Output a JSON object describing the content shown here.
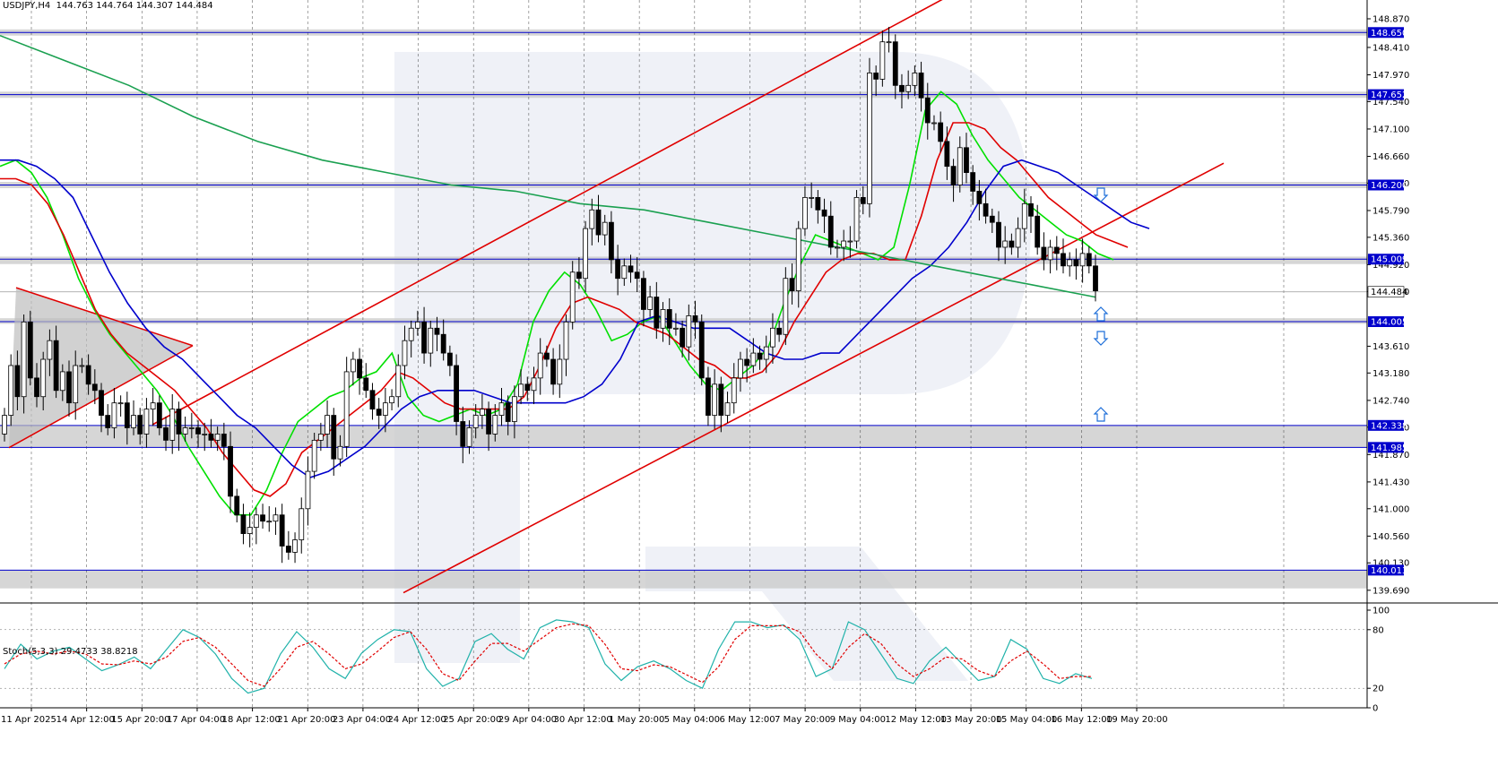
{
  "header": {
    "symbol": "USDJPY,H4",
    "ohlc": "144.763 144.764 144.307 144.484"
  },
  "stoch_header": {
    "label": "Stoch(5,3,3)",
    "values": "29.4733 38.8218"
  },
  "colors": {
    "background": "#ffffff",
    "watermark": "#e2e6f0",
    "candle": "#000000",
    "ma_fast": "#00e000",
    "ma_mid": "#e00000",
    "ma_slow": "#0000cc",
    "ma_long": "#1aa050",
    "channel": "#e00000",
    "level_line": "#0000cc",
    "zone": "#c8c8c8",
    "stoch_main": "#20b2aa",
    "stoch_signal": "#e00000",
    "arrow": "#1e6fd9"
  },
  "chart_data": [
    {
      "type": "candlestick",
      "name": "USDJPY,H4",
      "y_axis_ticks": [
        "148.870",
        "148.410",
        "147.970",
        "147.540",
        "147.100",
        "146.660",
        "146.230",
        "145.790",
        "145.360",
        "144.920",
        "144.490",
        "143.610",
        "143.180",
        "142.740",
        "142.310",
        "141.870",
        "141.430",
        "141.000",
        "140.560",
        "140.130",
        "139.690"
      ],
      "ylim": [
        139.5,
        149.1
      ],
      "x_axis_labels": [
        "11 Apr 2025",
        "14 Apr 12:00",
        "15 Apr 20:00",
        "17 Apr 04:00",
        "18 Apr 12:00",
        "21 Apr 20:00",
        "23 Apr 04:00",
        "24 Apr 12:00",
        "25 Apr 20:00",
        "29 Apr 04:00",
        "30 Apr 12:00",
        "1 May 20:00",
        "5 May 04:00",
        "6 May 12:00",
        "7 May 20:00",
        "9 May 04:00",
        "12 May 12:00",
        "13 May 20:00",
        "15 May 04:00",
        "16 May 12:00",
        "19 May 20:00"
      ],
      "current_price": "144.484",
      "levels": [
        {
          "label": "148.650",
          "value": 148.65
        },
        {
          "label": "147.652",
          "value": 147.652
        },
        {
          "label": "146.200",
          "value": 146.2
        },
        {
          "label": "145.009",
          "value": 145.009
        },
        {
          "label": "144.005",
          "value": 144.005
        },
        {
          "label": "142.338",
          "value": 142.338
        },
        {
          "label": "141.985",
          "value": 141.985
        },
        {
          "label": "140.013",
          "value": 140.013
        }
      ],
      "zones": [
        [
          148.6,
          148.7
        ],
        [
          147.6,
          147.7
        ],
        [
          146.15,
          146.25
        ],
        [
          144.93,
          145.05
        ],
        [
          143.97,
          144.06
        ],
        [
          141.985,
          142.338
        ],
        [
          139.72,
          140.013
        ]
      ],
      "candle_closes": [
        142.5,
        143.3,
        142.8,
        144.0,
        143.1,
        142.8,
        143.4,
        143.7,
        142.9,
        143.2,
        142.7,
        143.3,
        143.3,
        143.0,
        142.9,
        142.5,
        142.3,
        142.7,
        142.7,
        142.3,
        142.5,
        142.2,
        142.6,
        142.7,
        142.3,
        142.1,
        142.6,
        142.2,
        142.3,
        142.3,
        142.2,
        142.2,
        142.1,
        142.2,
        142.0,
        141.2,
        140.9,
        140.6,
        140.7,
        140.9,
        140.8,
        140.8,
        140.9,
        140.4,
        140.3,
        140.5,
        141.0,
        141.6,
        142.1,
        142.2,
        142.5,
        141.8,
        142.0,
        143.2,
        143.4,
        143.1,
        142.9,
        142.6,
        142.5,
        142.7,
        142.8,
        143.3,
        143.7,
        143.9,
        144.0,
        143.5,
        143.9,
        143.8,
        143.5,
        143.3,
        142.4,
        142.0,
        142.3,
        142.5,
        142.6,
        142.2,
        142.5,
        142.7,
        142.4,
        142.8,
        143.0,
        142.9,
        143.1,
        143.5,
        143.4,
        143.0,
        143.4,
        144.0,
        144.8,
        144.7,
        145.5,
        145.8,
        145.4,
        145.6,
        145.0,
        144.7,
        144.9,
        144.8,
        144.7,
        144.2,
        144.4,
        143.9,
        144.2,
        143.9,
        143.9,
        143.6,
        144.1,
        144.0,
        143.1,
        142.5,
        143.0,
        142.5,
        142.7,
        143.1,
        143.4,
        143.3,
        143.5,
        143.4,
        143.6,
        143.9,
        143.8,
        144.7,
        144.5,
        145.5,
        146.0,
        146.0,
        145.8,
        145.7,
        145.2,
        145.2,
        145.3,
        145.3,
        146.0,
        145.9,
        148.0,
        147.9,
        148.5,
        148.5,
        147.8,
        147.7,
        147.8,
        148.0,
        147.6,
        147.2,
        147.2,
        146.9,
        146.5,
        146.2,
        146.8,
        146.4,
        146.1,
        145.9,
        145.7,
        145.6,
        145.2,
        145.3,
        145.2,
        145.5,
        145.9,
        145.7,
        145.2,
        145.0,
        145.2,
        145.1,
        144.9,
        145.0,
        144.9,
        145.1,
        144.9,
        144.5
      ],
      "series": [
        {
          "name": "",
          "values": [
            146.5,
            146.6,
            146.4,
            146.0,
            145.4,
            144.7,
            144.2,
            143.8,
            143.5,
            143.2,
            142.9,
            142.5,
            142.0,
            141.6,
            141.2,
            140.9,
            140.9,
            141.3,
            141.9,
            142.4,
            142.6,
            142.8,
            142.9,
            143.1,
            143.2,
            143.5,
            142.8,
            142.5,
            142.4,
            142.5,
            142.6,
            142.5,
            142.6,
            143.0,
            144.0,
            144.5,
            144.8,
            144.6,
            144.2,
            143.7,
            143.8,
            144.0,
            144.1,
            143.7,
            143.3,
            143.0,
            142.9,
            143.1,
            143.3,
            143.6,
            144.3,
            144.9,
            145.4,
            145.3,
            145.2,
            145.1,
            145.0,
            145.2,
            146.2,
            147.4,
            147.7,
            147.5,
            147.0,
            146.6,
            146.3,
            146.0,
            145.8,
            145.6,
            145.4,
            145.3,
            145.1,
            145.0
          ]
        },
        {
          "name": "",
          "values": [
            146.3,
            146.3,
            146.2,
            145.9,
            145.4,
            144.8,
            144.2,
            143.8,
            143.5,
            143.3,
            143.1,
            142.9,
            142.6,
            142.3,
            141.9,
            141.6,
            141.3,
            141.2,
            141.4,
            141.9,
            142.1,
            142.3,
            142.5,
            142.7,
            142.9,
            143.2,
            143.1,
            142.9,
            142.7,
            142.6,
            142.6,
            142.6,
            142.6,
            142.8,
            143.3,
            143.9,
            144.3,
            144.4,
            144.3,
            144.2,
            144.0,
            143.9,
            143.8,
            143.6,
            143.4,
            143.3,
            143.1,
            143.1,
            143.2,
            143.5,
            144.0,
            144.4,
            144.8,
            145.0,
            145.1,
            145.1,
            145.0,
            145.0,
            145.7,
            146.6,
            147.2,
            147.2,
            147.1,
            146.8,
            146.6,
            146.3,
            146.0,
            145.8,
            145.6,
            145.4,
            145.3,
            145.2
          ]
        },
        {
          "name": "",
          "values": [
            146.6,
            146.6,
            146.5,
            146.3,
            146.0,
            145.4,
            144.8,
            144.3,
            143.9,
            143.6,
            143.4,
            143.1,
            142.8,
            142.5,
            142.3,
            142.0,
            141.7,
            141.5,
            141.6,
            141.8,
            142.0,
            142.3,
            142.6,
            142.8,
            142.9,
            142.9,
            142.9,
            142.8,
            142.7,
            142.7,
            142.7,
            142.7,
            142.8,
            143.0,
            143.4,
            144.0,
            144.1,
            144.0,
            143.9,
            143.9,
            143.9,
            143.7,
            143.5,
            143.4,
            143.4,
            143.5,
            143.5,
            143.8,
            144.1,
            144.4,
            144.7,
            144.9,
            145.2,
            145.6,
            146.1,
            146.5,
            146.6,
            146.5,
            146.4,
            146.2,
            146.0,
            145.8,
            145.6,
            145.5
          ]
        },
        {
          "name": "",
          "values": [
            148.6,
            148.2,
            147.8,
            147.3,
            146.9,
            146.6,
            146.4,
            146.2,
            146.1,
            145.9,
            145.8,
            145.6,
            145.4,
            145.2,
            145.0,
            144.8,
            144.6,
            144.4
          ]
        }
      ]
    },
    {
      "type": "line",
      "name": "Stoch(5,3,3)",
      "ylim": [
        0,
        100
      ],
      "y_axis_ticks": [
        "100",
        "80",
        "20",
        "0"
      ],
      "series": [
        {
          "name": "",
          "values": [
            40,
            65,
            50,
            58,
            62,
            50,
            38,
            44,
            52,
            40,
            60,
            80,
            72,
            55,
            30,
            15,
            20,
            55,
            78,
            62,
            40,
            30,
            56,
            70,
            80,
            78,
            40,
            22,
            30,
            68,
            76,
            60,
            50,
            82,
            90,
            88,
            82,
            45,
            28,
            42,
            48,
            40,
            28,
            20,
            60,
            88,
            88,
            82,
            85,
            70,
            32,
            40,
            88,
            80,
            55,
            30,
            25,
            48,
            62,
            45,
            28,
            32,
            70,
            60,
            30,
            25,
            35,
            30
          ]
        },
        {
          "name": "",
          "values": [
            45,
            55,
            58,
            55,
            58,
            55,
            45,
            44,
            48,
            45,
            52,
            68,
            72,
            62,
            45,
            28,
            22,
            40,
            62,
            68,
            55,
            40,
            45,
            58,
            72,
            78,
            60,
            35,
            28,
            48,
            66,
            66,
            58,
            70,
            82,
            86,
            84,
            65,
            40,
            38,
            44,
            42,
            34,
            26,
            42,
            70,
            84,
            84,
            84,
            78,
            55,
            40,
            62,
            76,
            66,
            45,
            32,
            40,
            52,
            50,
            38,
            32,
            48,
            58,
            45,
            30,
            32,
            32
          ]
        }
      ]
    }
  ]
}
